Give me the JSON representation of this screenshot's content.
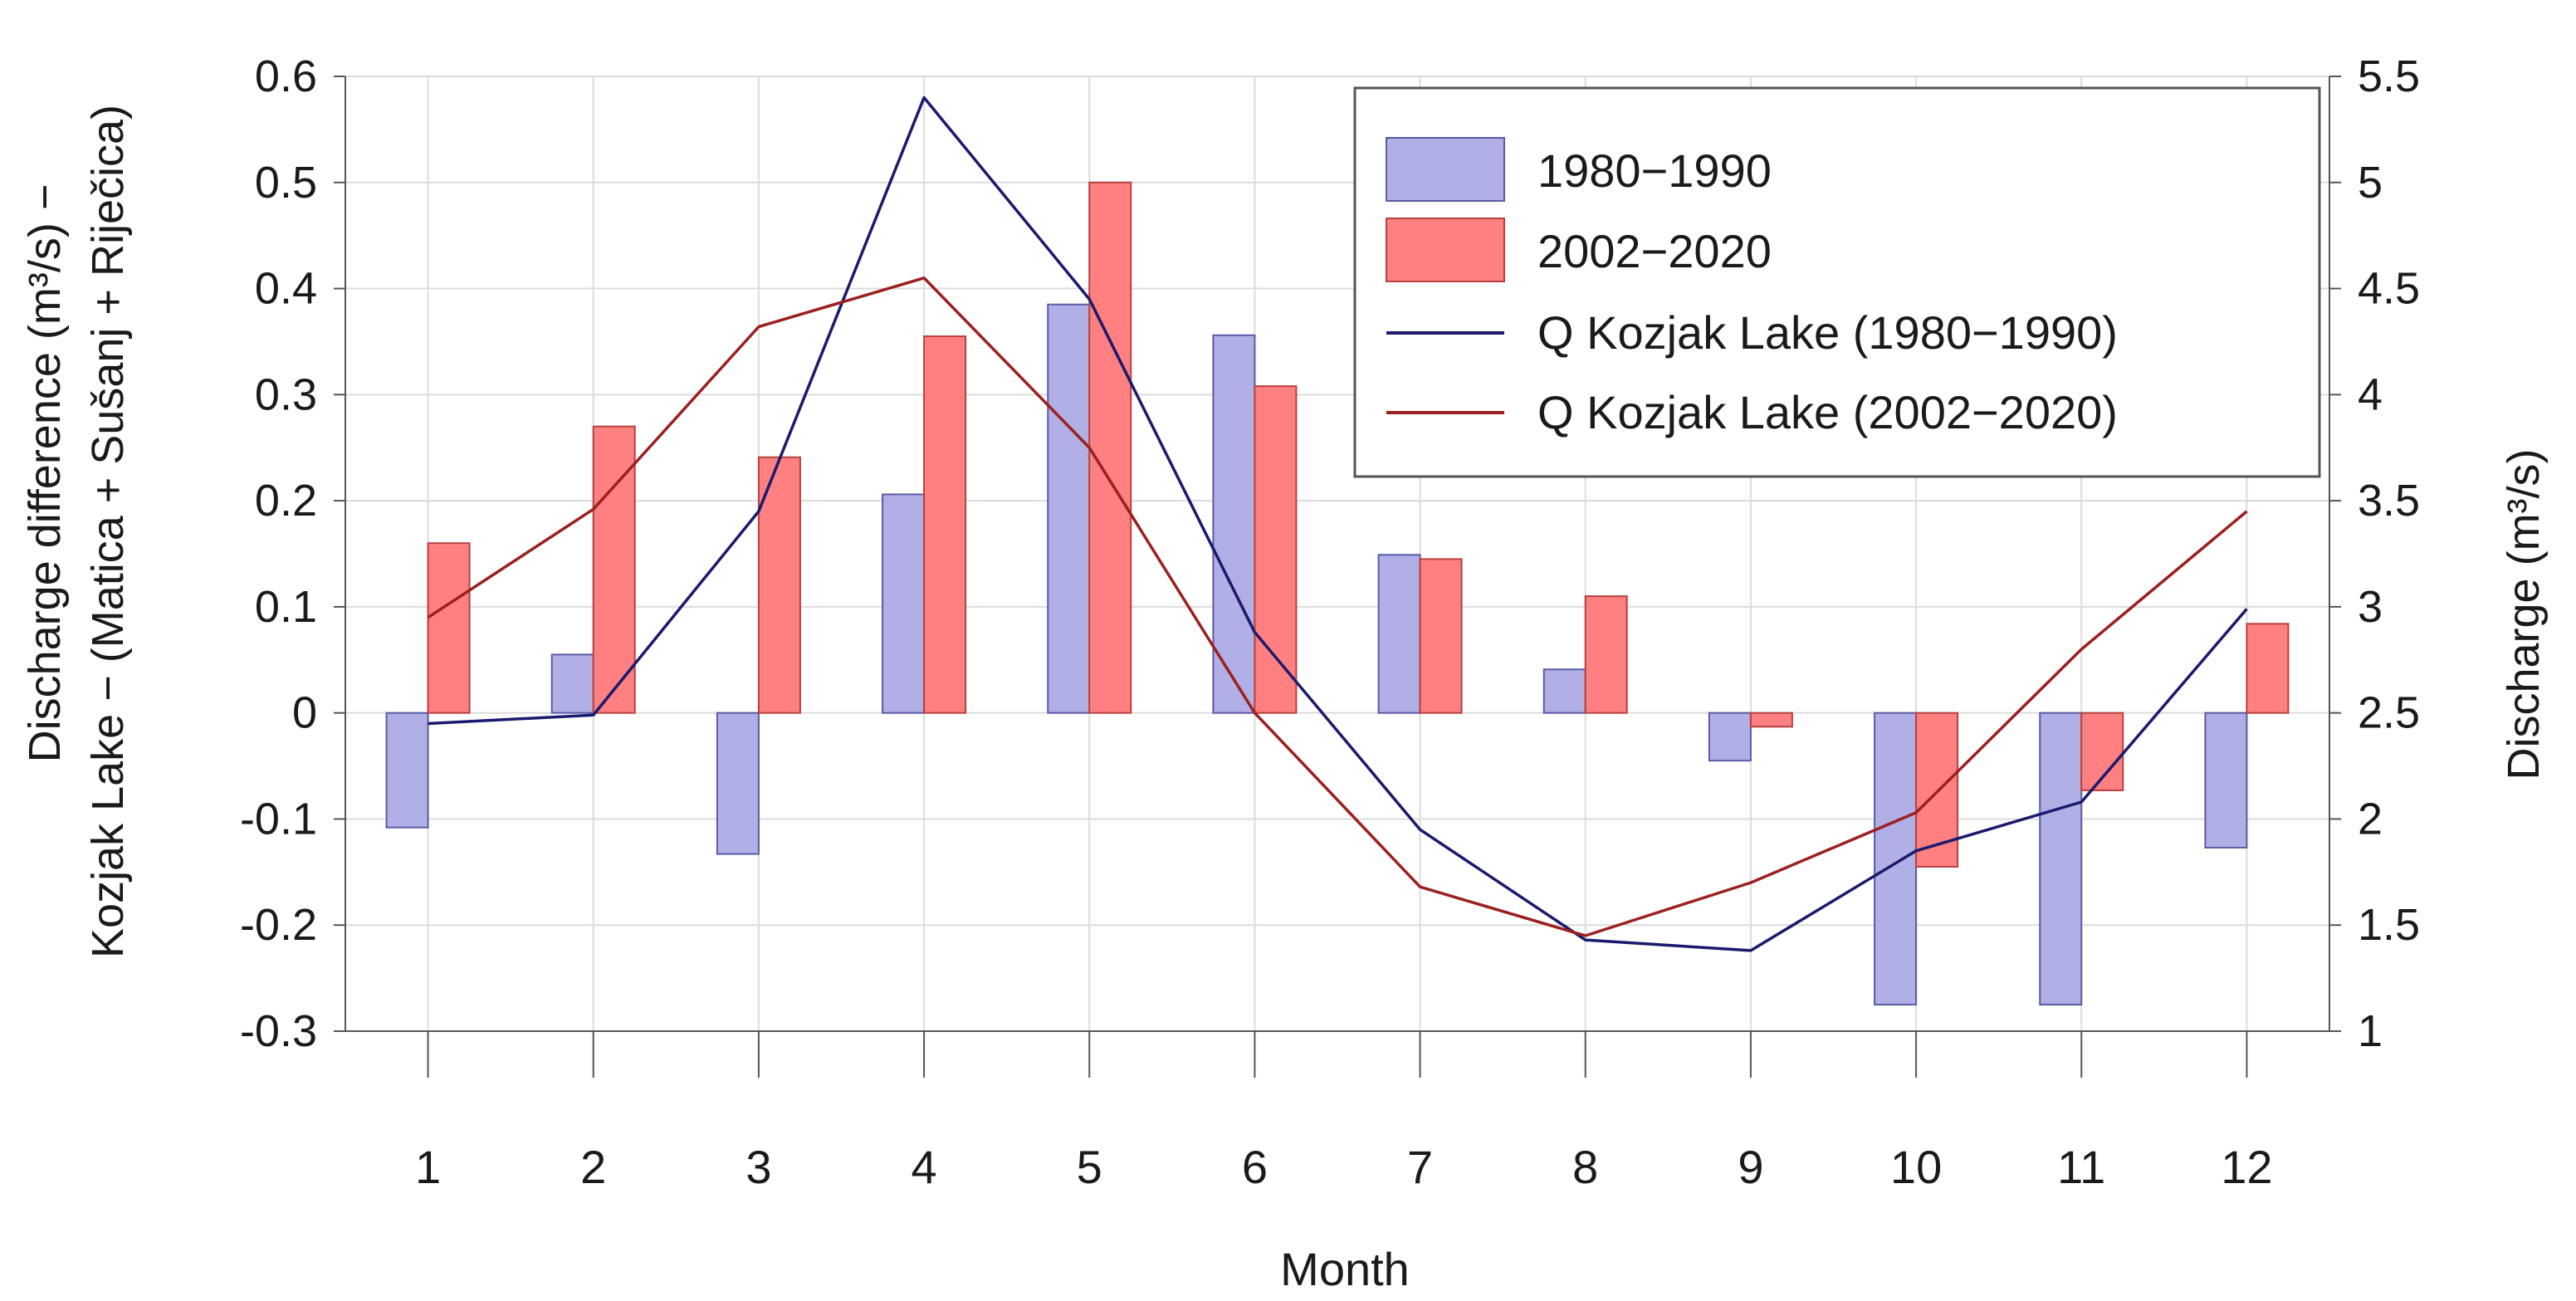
{
  "chart_data": {
    "type": "bar",
    "title": "",
    "xlabel": "Month",
    "ylabel_left_line1": "Discharge difference (m³/s) −",
    "ylabel_left_line2": "Kozjak Lake − (Matica + Sušanj + Riječica)",
    "ylabel_right": "Discharge (m³/s)",
    "categories": [
      "1",
      "2",
      "3",
      "4",
      "5",
      "6",
      "7",
      "8",
      "9",
      "10",
      "11",
      "12"
    ],
    "ylim_left": [
      -0.3,
      0.6
    ],
    "yticks_left": [
      "-0.3",
      "-0.2",
      "-0.1",
      "0",
      "0.1",
      "0.2",
      "0.3",
      "0.4",
      "0.5",
      "0.6"
    ],
    "ylim_right": [
      1,
      5.5
    ],
    "yticks_right": [
      "1",
      "1.5",
      "2",
      "2.5",
      "3",
      "3.5",
      "4",
      "4.5",
      "5",
      "5.5"
    ],
    "grid": true,
    "legend_position": "top-right",
    "series": [
      {
        "name": "1980−1990",
        "kind": "bar",
        "axis": "left",
        "color": "#b0b0e6",
        "values": [
          -0.108,
          0.055,
          -0.133,
          0.206,
          0.385,
          0.356,
          0.149,
          0.041,
          -0.045,
          -0.275,
          -0.275,
          -0.127
        ]
      },
      {
        "name": "2002−2020",
        "kind": "bar",
        "axis": "left",
        "color": "#ff8080",
        "values": [
          0.16,
          0.27,
          0.241,
          0.355,
          0.5,
          0.308,
          0.145,
          0.11,
          -0.013,
          -0.145,
          -0.073,
          0.084
        ]
      },
      {
        "name": "Q Kozjak Lake (1980−1990)",
        "kind": "line",
        "axis": "right",
        "color": "#1a1a6e",
        "values": [
          2.45,
          2.49,
          3.45,
          5.4,
          4.45,
          2.88,
          1.95,
          1.43,
          1.38,
          1.85,
          2.08,
          2.99
        ]
      },
      {
        "name": "Q Kozjak Lake (2002−2020)",
        "kind": "line",
        "axis": "right",
        "color": "#9b2020",
        "values": [
          2.95,
          3.46,
          4.32,
          4.55,
          3.75,
          2.5,
          1.68,
          1.45,
          1.7,
          2.03,
          2.8,
          3.45
        ]
      }
    ]
  }
}
